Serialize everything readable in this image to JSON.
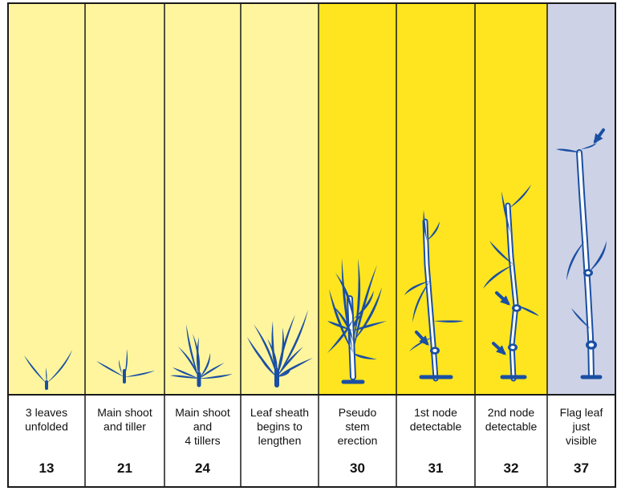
{
  "colors": {
    "pale_yellow": "#fff59e",
    "bright_yellow": "#ffe51f",
    "lavender": "#cdd2e6",
    "plant": "#1a4fa3",
    "border": "#1a1a1a"
  },
  "stages": [
    {
      "label_lines": [
        "3 leaves",
        "unfolded"
      ],
      "code": "13",
      "bg": "pale_yellow",
      "plant": "plant-13-icon"
    },
    {
      "label_lines": [
        "Main shoot",
        "and tiller"
      ],
      "code": "21",
      "bg": "pale_yellow",
      "plant": "plant-21-icon"
    },
    {
      "label_lines": [
        "Main shoot",
        "and",
        "4 tillers"
      ],
      "code": "24",
      "bg": "pale_yellow",
      "plant": "plant-24-icon"
    },
    {
      "label_lines": [
        "Leaf sheath",
        "begins to",
        "lengthen"
      ],
      "code": "",
      "bg": "pale_yellow",
      "plant": "plant-leaf-sheath-icon"
    },
    {
      "label_lines": [
        "Pseudo",
        "stem",
        "erection"
      ],
      "code": "30",
      "bg": "bright_yellow",
      "plant": "plant-30-icon"
    },
    {
      "label_lines": [
        "1st node",
        "detectable"
      ],
      "code": "31",
      "bg": "bright_yellow",
      "plant": "plant-31-icon"
    },
    {
      "label_lines": [
        "2nd node",
        "detectable"
      ],
      "code": "32",
      "bg": "bright_yellow",
      "plant": "plant-32-icon"
    },
    {
      "label_lines": [
        "Flag leaf",
        "just",
        "visible"
      ],
      "code": "37",
      "bg": "lavender",
      "plant": "plant-37-icon"
    }
  ]
}
